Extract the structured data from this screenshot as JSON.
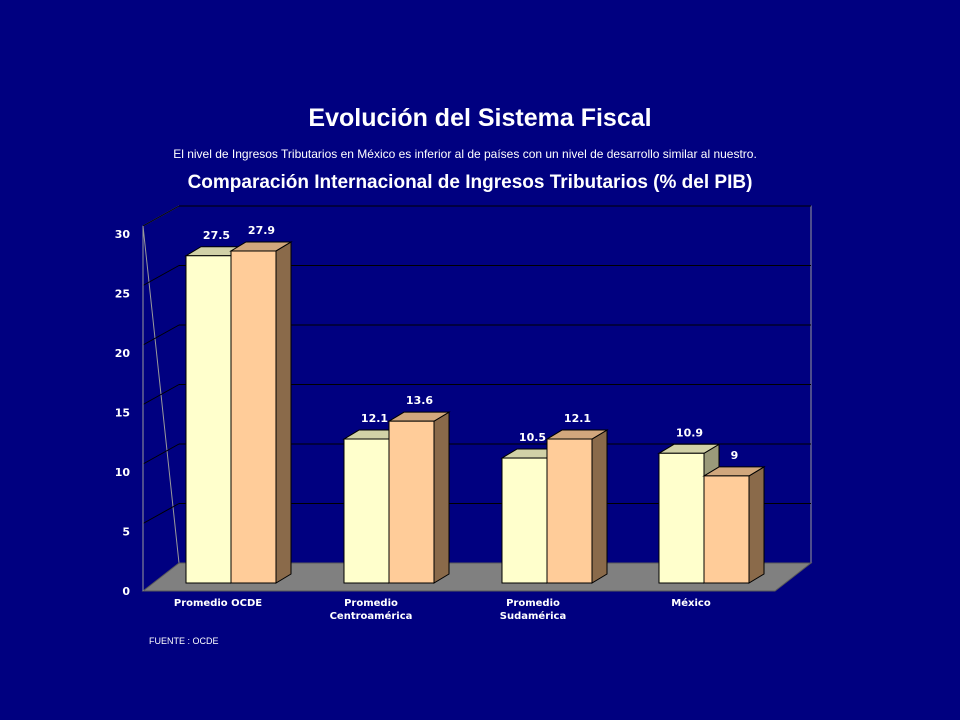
{
  "header": {
    "title": "Evolución del Sistema Fiscal",
    "subtitle": "El nivel de Ingresos Tributarios en México es inferior al de países con un nivel de desarrollo similar al nuestro.",
    "source": "FUENTE : OCDE"
  },
  "colors": {
    "background": "#000080",
    "series1_front": "#FFFFCC",
    "series2_front": "#FFCC99",
    "floor": "#808080",
    "text": "#FFFFFF"
  },
  "chart_data": {
    "type": "bar",
    "title": "Comparación Internacional de Ingresos Tributarios (% del PIB)",
    "categories": [
      [
        "Promedio OCDE"
      ],
      [
        "Promedio",
        "Centroamérica"
      ],
      [
        "Promedio",
        "Sudamérica"
      ],
      [
        "México"
      ]
    ],
    "series": [
      {
        "values": [
          27.5,
          12.1,
          10.5,
          10.9
        ],
        "labels": [
          "27.5",
          "12.1",
          "10.5",
          "10.9"
        ]
      },
      {
        "values": [
          27.9,
          13.6,
          12.1,
          9
        ],
        "labels": [
          "27.9",
          "13.6",
          "12.1",
          "9"
        ]
      }
    ],
    "ylim": [
      0,
      30
    ],
    "yticks": [
      "0",
      "5",
      "10",
      "15",
      "20",
      "25",
      "30"
    ],
    "grid": true,
    "legend": "none",
    "style": "3d-clustered-bar"
  }
}
